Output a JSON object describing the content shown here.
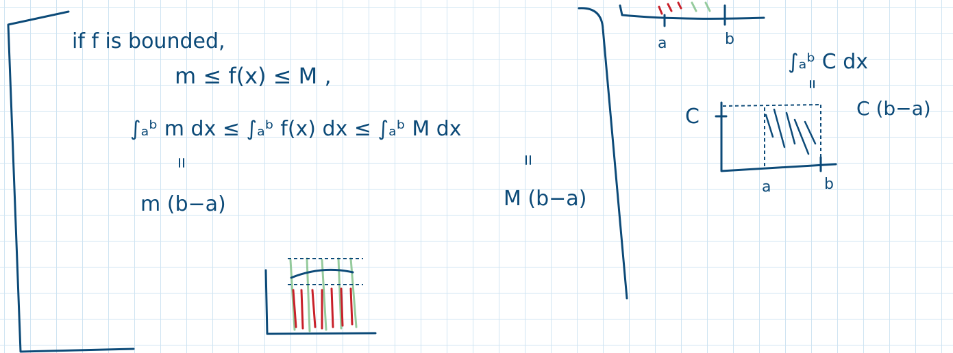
{
  "notes": {
    "line1": "if f is bounded,",
    "line2": "m ≤ f(x) ≤ M ,",
    "integrals": "∫ₐᵇ m dx ≤ ∫ₐᵇ f(x) dx ≤ ∫ₐᵇ M dx",
    "lower_result": "m (b−a)",
    "upper_result": "M (b−a)"
  },
  "top_sketch": {
    "x_labels": [
      "a",
      "b"
    ]
  },
  "constant_example": {
    "integral": "∫ₐᵇ C dx",
    "result": "C (b−a)",
    "y_label": "C",
    "x_labels": [
      "a",
      "b"
    ]
  }
}
